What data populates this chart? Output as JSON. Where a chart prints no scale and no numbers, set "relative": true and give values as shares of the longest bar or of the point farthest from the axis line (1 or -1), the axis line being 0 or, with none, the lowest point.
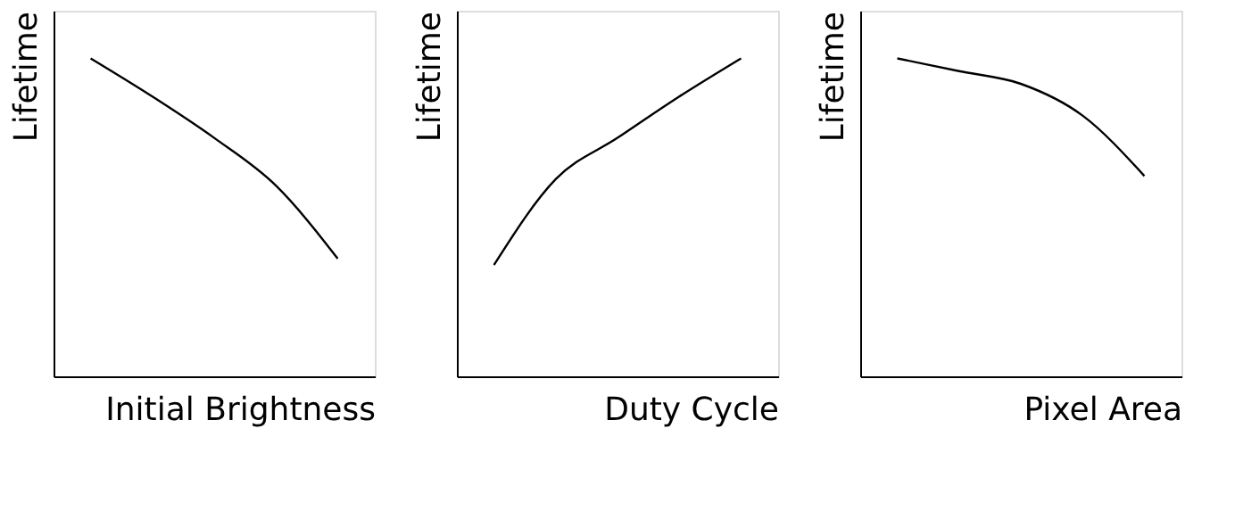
{
  "chart_data": [
    {
      "type": "line",
      "relative": true,
      "ylabel": "Lifetime",
      "xlabel": "Initial Brightness",
      "categories": [
        null,
        null,
        null,
        null,
        null
      ],
      "tick_labels": false,
      "grid": false,
      "legend": false,
      "series": [
        {
          "color": "#000000",
          "values": [
            1,
            0.88,
            0.75,
            0.6,
            0.37
          ]
        }
      ]
    },
    {
      "type": "line",
      "relative": true,
      "ylabel": "Lifetime",
      "xlabel": "Duty Cycle",
      "categories": [
        null,
        null,
        null,
        null,
        null
      ],
      "tick_labels": false,
      "grid": false,
      "legend": false,
      "series": [
        {
          "color": "#000000",
          "values": [
            0.35,
            0.62,
            0.75,
            0.88,
            1
          ]
        }
      ]
    },
    {
      "type": "line",
      "relative": true,
      "ylabel": "Lifetime",
      "xlabel": "Pixel Area",
      "categories": [
        null,
        null,
        null,
        null,
        null
      ],
      "tick_labels": false,
      "grid": false,
      "legend": false,
      "series": [
        {
          "color": "#000000",
          "values": [
            1,
            0.96,
            0.92,
            0.82,
            0.63
          ]
        }
      ]
    }
  ]
}
